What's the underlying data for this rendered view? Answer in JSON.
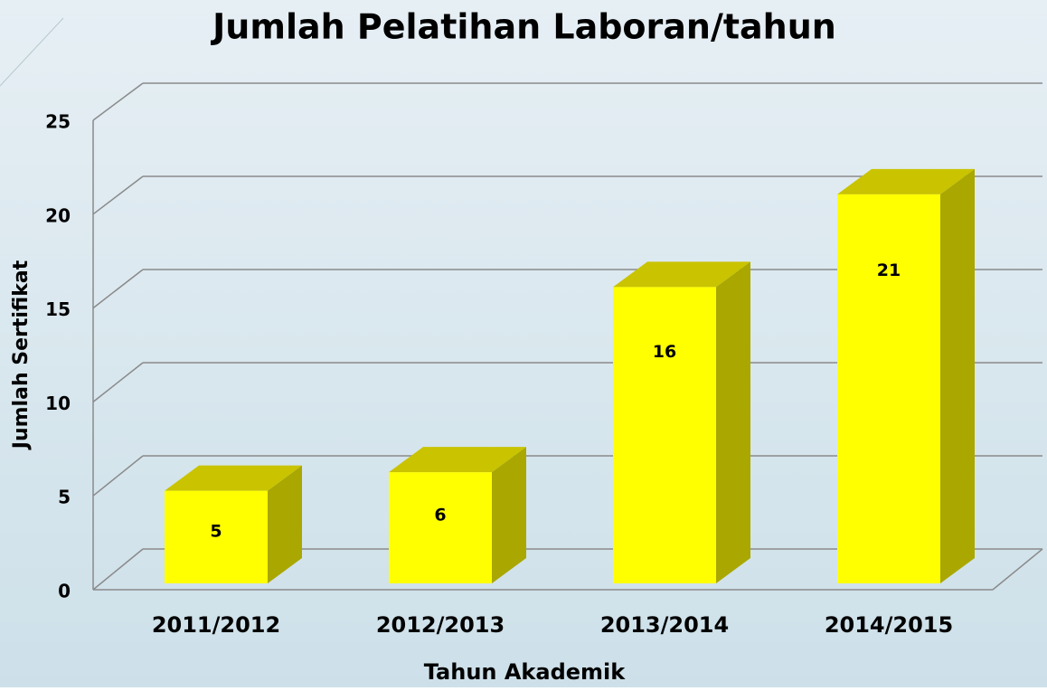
{
  "chart_data": {
    "type": "bar3d",
    "title": "Jumlah Pelatihan Laboran/tahun",
    "categories": [
      "2011/2012",
      "2012/2013",
      "2013/2014",
      "2014/2015"
    ],
    "values": [
      5,
      6,
      16,
      21
    ],
    "color": "#ffff00",
    "xlabel": "Tahun Akademik",
    "ylabel": "Jumlah Sertifikat",
    "ylim": [
      0,
      25
    ],
    "yticks": [
      0,
      5,
      10,
      15,
      20,
      25
    ],
    "grid": true
  }
}
